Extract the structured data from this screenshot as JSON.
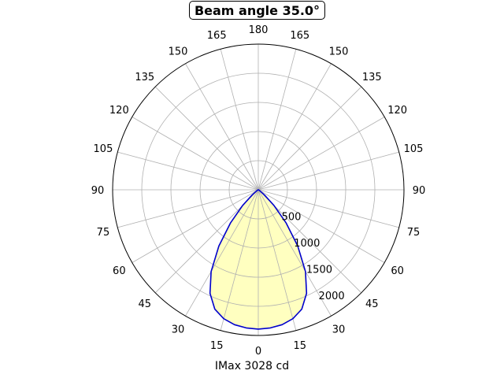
{
  "chart_data": {
    "type": "polar",
    "title": "Beam angle 35.0°",
    "xlabel": "IMax 3028 cd",
    "angle_tick_labels": [
      "0",
      "15",
      "30",
      "45",
      "60",
      "75",
      "90",
      "105",
      "120",
      "135",
      "150",
      "165",
      "180",
      "165",
      "150",
      "135",
      "120",
      "105",
      "90",
      "75",
      "60",
      "45",
      "30",
      "15"
    ],
    "radial_tick_labels": [
      "500",
      "1000",
      "1500",
      "2000"
    ],
    "radial_ticks": [
      500,
      1000,
      1500,
      2000
    ],
    "rlim": [
      0,
      2500
    ],
    "grid": true,
    "series": [
      {
        "angles_deg": [
          0,
          5,
          10,
          15,
          20,
          25,
          30,
          35,
          40,
          45,
          50,
          60,
          90
        ],
        "values": [
          2390,
          2380,
          2350,
          2290,
          2180,
          1960,
          1620,
          1180,
          740,
          380,
          140,
          20,
          0
        ],
        "color": "#0000cc",
        "fill": "#ffffc0"
      }
    ]
  }
}
